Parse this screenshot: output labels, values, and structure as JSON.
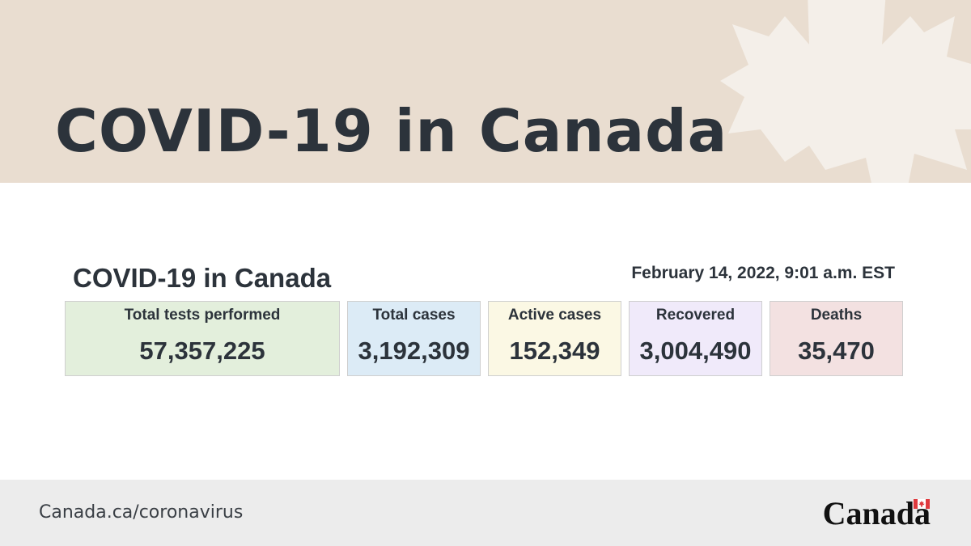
{
  "banner": {
    "title": "COVID-19 in Canada"
  },
  "panel": {
    "title": "COVID-19 in Canada",
    "timestamp": "February 14, 2022, 9:01 a.m. EST"
  },
  "stats": [
    {
      "label": "Total tests performed",
      "value": "57,357,225",
      "color": "#e3efdc"
    },
    {
      "label": "Total cases",
      "value": "3,192,309",
      "color": "#dcebf6"
    },
    {
      "label": "Active cases",
      "value": "152,349",
      "color": "#fbf8e4"
    },
    {
      "label": "Recovered",
      "value": "3,004,490",
      "color": "#f0eafa"
    },
    {
      "label": "Deaths",
      "value": "35,470",
      "color": "#f3e1e1"
    }
  ],
  "footer": {
    "link_text": "Canada.ca/coronavirus",
    "wordmark": "Canada"
  },
  "colors": {
    "banner_bg": "#e9ddd0",
    "footer_bg": "#ececec",
    "text": "#2c333b",
    "flag_red": "#e03a3e"
  },
  "icons": {
    "banner_decoration": "maple-leaf-icon",
    "wordmark_flag": "canada-flag-icon"
  }
}
